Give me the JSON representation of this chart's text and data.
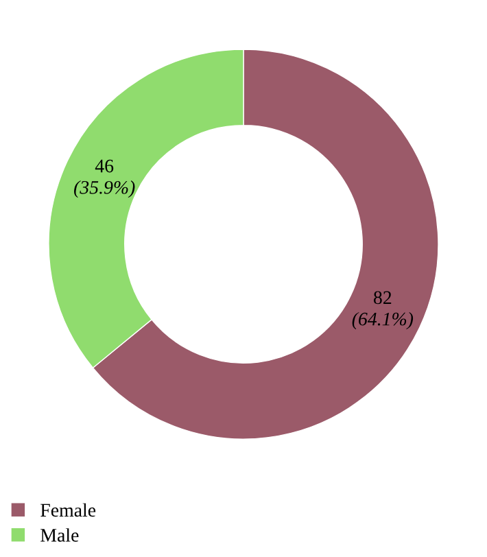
{
  "chart_data": {
    "type": "donut",
    "categories": [
      "Female",
      "Male"
    ],
    "values": [
      82,
      46
    ],
    "colors": [
      "#9b5a69",
      "#90dc6e"
    ],
    "value_labels": [
      "82\n(64.1%)",
      "46\n(35.9%)"
    ],
    "legend": "bottom left"
  }
}
